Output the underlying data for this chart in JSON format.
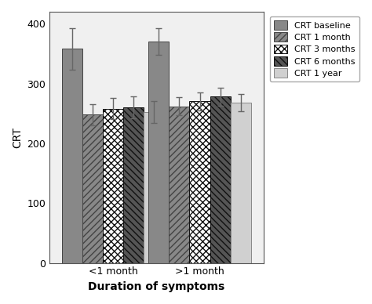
{
  "groups": [
    "<1 month",
    ">1 month"
  ],
  "series_labels": [
    "CRT baseline",
    "CRT 1 month",
    "CRT 3 months",
    "CRT 6 months",
    "CRT 1 year"
  ],
  "values": [
    [
      358,
      248,
      258,
      260,
      252
    ],
    [
      370,
      262,
      270,
      278,
      268
    ]
  ],
  "errors": [
    [
      35,
      18,
      18,
      18,
      18
    ],
    [
      22,
      15,
      15,
      15,
      15
    ]
  ],
  "ylabel": "CRT",
  "xlabel": "Duration of symptoms",
  "ylim": [
    0,
    420
  ],
  "yticks": [
    0,
    100,
    200,
    300,
    400
  ],
  "bar_width": 0.13,
  "figsize": [
    4.74,
    3.88
  ],
  "dpi": 100,
  "bg_color": "#f0f0f0",
  "bar_facecolors": [
    "#888888",
    "#888888",
    "#111111",
    "#555555",
    "#cccccc"
  ],
  "bar_edgecolors": [
    "#333333",
    "#333333",
    "#111111",
    "#111111",
    "#888888"
  ],
  "hatches": [
    "",
    "////",
    ".....",
    "\\\\\\\\",
    ""
  ],
  "legend_hatches": [
    "",
    "////",
    ".....",
    "\\\\\\\\",
    ""
  ],
  "legend_facecolors": [
    "#888888",
    "#888888",
    "#111111",
    "#555555",
    "#cccccc"
  ],
  "legend_edgecolors": [
    "#333333",
    "#333333",
    "#111111",
    "#111111",
    "#888888"
  ]
}
